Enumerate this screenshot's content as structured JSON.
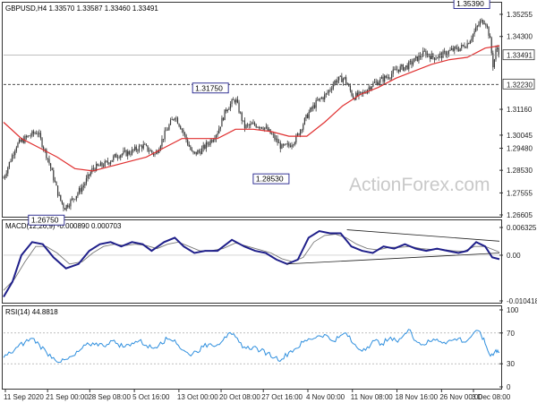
{
  "header": {
    "price_info": "GBPUSD,H4  1.33570 1.33587 1.33460 1.33491",
    "macd_info": "MACD(12,26,9) -0.000890 0.000703",
    "rsi_info": "RSI(14) 44.8818"
  },
  "watermark": "ActionForex.com",
  "colors": {
    "candle": "#3a3a3a",
    "ma": "#e03030",
    "macd": "#1f1f8a",
    "signal": "#777777",
    "rsi": "#2f8fde",
    "level_line": "#333333",
    "grid": "#e6e6e6"
  },
  "chart_data": [
    {
      "type": "candlestick",
      "title": "GBPUSD,H4",
      "ohlc_last": {
        "open": 1.3357,
        "high": 1.33587,
        "low": 1.3346,
        "close": 1.33491
      },
      "yticks": [
        "1.35255",
        "1.34300",
        "1.33491",
        "1.32230",
        "1.31160",
        "1.30045",
        "1.29480",
        "1.28530",
        "1.27555",
        "1.26605"
      ],
      "ylim": [
        1.26605,
        1.35255
      ],
      "path_points": [
        [
          0,
          1.282
        ],
        [
          14,
          1.296
        ],
        [
          28,
          1.3
        ],
        [
          38,
          1.302
        ],
        [
          50,
          1.29
        ],
        [
          62,
          1.274
        ],
        [
          68,
          1.269
        ],
        [
          78,
          1.273
        ],
        [
          90,
          1.279
        ],
        [
          100,
          1.286
        ],
        [
          114,
          1.288
        ],
        [
          128,
          1.292
        ],
        [
          142,
          1.293
        ],
        [
          156,
          1.296
        ],
        [
          170,
          1.292
        ],
        [
          182,
          1.302
        ],
        [
          192,
          1.309
        ],
        [
          200,
          1.303
        ],
        [
          212,
          1.292
        ],
        [
          222,
          1.294
        ],
        [
          232,
          1.298
        ],
        [
          240,
          1.302
        ],
        [
          250,
          1.312
        ],
        [
          260,
          1.316
        ],
        [
          270,
          1.304
        ],
        [
          282,
          1.305
        ],
        [
          292,
          1.304
        ],
        [
          302,
          1.3
        ],
        [
          312,
          1.295
        ],
        [
          320,
          1.296
        ],
        [
          328,
          1.299
        ],
        [
          334,
          1.304
        ],
        [
          342,
          1.31
        ],
        [
          352,
          1.315
        ],
        [
          362,
          1.318
        ],
        [
          372,
          1.324
        ],
        [
          382,
          1.325
        ],
        [
          392,
          1.317
        ],
        [
          402,
          1.318
        ],
        [
          412,
          1.322
        ],
        [
          422,
          1.324
        ],
        [
          432,
          1.326
        ],
        [
          442,
          1.329
        ],
        [
          452,
          1.33
        ],
        [
          462,
          1.333
        ],
        [
          472,
          1.336
        ],
        [
          482,
          1.334
        ],
        [
          492,
          1.335
        ],
        [
          502,
          1.337
        ],
        [
          512,
          1.338
        ],
        [
          520,
          1.34
        ],
        [
          528,
          1.345
        ],
        [
          534,
          1.349
        ],
        [
          540,
          1.35
        ],
        [
          545,
          1.343
        ],
        [
          549,
          1.33
        ],
        [
          553,
          1.339
        ],
        [
          556,
          1.3349
        ]
      ],
      "ma_points": [
        [
          0,
          1.306
        ],
        [
          20,
          1.299
        ],
        [
          40,
          1.295
        ],
        [
          60,
          1.291
        ],
        [
          80,
          1.286
        ],
        [
          100,
          1.285
        ],
        [
          120,
          1.287
        ],
        [
          140,
          1.289
        ],
        [
          160,
          1.291
        ],
        [
          180,
          1.295
        ],
        [
          200,
          1.299
        ],
        [
          220,
          1.299
        ],
        [
          240,
          1.299
        ],
        [
          260,
          1.303
        ],
        [
          280,
          1.303
        ],
        [
          300,
          1.302
        ],
        [
          320,
          1.3
        ],
        [
          340,
          1.3
        ],
        [
          360,
          1.306
        ],
        [
          380,
          1.313
        ],
        [
          400,
          1.318
        ],
        [
          420,
          1.321
        ],
        [
          440,
          1.325
        ],
        [
          460,
          1.328
        ],
        [
          480,
          1.331
        ],
        [
          500,
          1.333
        ],
        [
          520,
          1.334
        ],
        [
          540,
          1.338
        ],
        [
          556,
          1.339
        ]
      ],
      "annotations": [
        {
          "label": "1.35390",
          "x": 525,
          "value": 1.3539
        },
        {
          "label": "1.31750",
          "x": 232,
          "value": 1.3175
        },
        {
          "label": "1.28530",
          "x": 300,
          "value": 1.2853
        },
        {
          "label": "1.26750",
          "x": 48,
          "value": 1.2675
        }
      ],
      "current_price_label": "1.33491",
      "current_price": 1.33491,
      "support_level_label": "1.32230",
      "support_level": 1.3223
    },
    {
      "type": "line",
      "title": "MACD(12,26,9)",
      "values_header": {
        "macd": -0.00089,
        "signal": 0.000703
      },
      "yticks": [
        "0.006325",
        "0.00",
        "-0.010418"
      ],
      "ylim": [
        -0.010418,
        0.006325
      ],
      "macd_points": [
        [
          0,
          -0.0095
        ],
        [
          10,
          -0.006
        ],
        [
          20,
          0.0
        ],
        [
          32,
          0.003
        ],
        [
          44,
          0.0025
        ],
        [
          56,
          -0.0005
        ],
        [
          70,
          -0.003
        ],
        [
          84,
          -0.002
        ],
        [
          96,
          0.001
        ],
        [
          108,
          0.0025
        ],
        [
          120,
          0.003
        ],
        [
          132,
          0.002
        ],
        [
          144,
          0.003
        ],
        [
          156,
          0.0025
        ],
        [
          166,
          0.001
        ],
        [
          180,
          0.003
        ],
        [
          192,
          0.004
        ],
        [
          202,
          0.002
        ],
        [
          214,
          0.0005
        ],
        [
          226,
          0.001
        ],
        [
          240,
          0.001
        ],
        [
          256,
          0.0035
        ],
        [
          270,
          0.002
        ],
        [
          282,
          0.001
        ],
        [
          294,
          0.0005
        ],
        [
          306,
          -0.001
        ],
        [
          318,
          -0.002
        ],
        [
          330,
          -0.001
        ],
        [
          342,
          0.004
        ],
        [
          354,
          0.0055
        ],
        [
          366,
          0.005
        ],
        [
          378,
          0.005
        ],
        [
          390,
          0.002
        ],
        [
          402,
          0.001
        ],
        [
          414,
          0.0005
        ],
        [
          426,
          0.002
        ],
        [
          438,
          0.0015
        ],
        [
          450,
          0.0025
        ],
        [
          462,
          0.0015
        ],
        [
          474,
          0.001
        ],
        [
          486,
          0.0015
        ],
        [
          498,
          0.001
        ],
        [
          510,
          0.0005
        ],
        [
          520,
          0.001
        ],
        [
          530,
          0.003
        ],
        [
          540,
          0.002
        ],
        [
          548,
          -0.0005
        ],
        [
          556,
          -0.0009
        ]
      ],
      "signal_points": [
        [
          0,
          -0.008
        ],
        [
          12,
          -0.0055
        ],
        [
          24,
          -0.0015
        ],
        [
          36,
          0.002
        ],
        [
          48,
          0.002
        ],
        [
          60,
          0.0005
        ],
        [
          74,
          -0.002
        ],
        [
          88,
          -0.0015
        ],
        [
          100,
          0.0005
        ],
        [
          112,
          0.002
        ],
        [
          124,
          0.0025
        ],
        [
          136,
          0.0022
        ],
        [
          148,
          0.0025
        ],
        [
          160,
          0.0022
        ],
        [
          172,
          0.0015
        ],
        [
          184,
          0.0025
        ],
        [
          196,
          0.003
        ],
        [
          208,
          0.002
        ],
        [
          220,
          0.001
        ],
        [
          232,
          0.001
        ],
        [
          246,
          0.0015
        ],
        [
          260,
          0.0028
        ],
        [
          274,
          0.002
        ],
        [
          288,
          0.0012
        ],
        [
          300,
          0.0005
        ],
        [
          312,
          -0.0008
        ],
        [
          324,
          -0.0015
        ],
        [
          336,
          -0.0005
        ],
        [
          348,
          0.003
        ],
        [
          360,
          0.0045
        ],
        [
          372,
          0.0048
        ],
        [
          384,
          0.004
        ],
        [
          396,
          0.0025
        ],
        [
          408,
          0.0015
        ],
        [
          420,
          0.0012
        ],
        [
          432,
          0.0018
        ],
        [
          444,
          0.0018
        ],
        [
          456,
          0.002
        ],
        [
          468,
          0.0015
        ],
        [
          480,
          0.0013
        ],
        [
          492,
          0.0013
        ],
        [
          504,
          0.001
        ],
        [
          516,
          0.0009
        ],
        [
          528,
          0.002
        ],
        [
          540,
          0.002
        ],
        [
          556,
          0.0007
        ]
      ],
      "trendlines": [
        [
          [
            318,
            -0.002
          ],
          [
            556,
            0.0005
          ]
        ],
        [
          [
            385,
            0.0058
          ],
          [
            556,
            0.0032
          ]
        ]
      ]
    },
    {
      "type": "line",
      "title": "RSI(14)",
      "current_value": 44.8818,
      "yticks": [
        "100",
        "70",
        "30",
        "0"
      ],
      "ylim": [
        0,
        100
      ],
      "levels": [
        70,
        30
      ],
      "rsi_points": [
        [
          0,
          38
        ],
        [
          8,
          44
        ],
        [
          16,
          52
        ],
        [
          24,
          58
        ],
        [
          32,
          63
        ],
        [
          40,
          55
        ],
        [
          48,
          45
        ],
        [
          56,
          38
        ],
        [
          64,
          32
        ],
        [
          72,
          36
        ],
        [
          80,
          41
        ],
        [
          88,
          50
        ],
        [
          96,
          55
        ],
        [
          104,
          57
        ],
        [
          112,
          53
        ],
        [
          120,
          60
        ],
        [
          128,
          56
        ],
        [
          136,
          52
        ],
        [
          144,
          57
        ],
        [
          152,
          60
        ],
        [
          160,
          54
        ],
        [
          168,
          50
        ],
        [
          176,
          58
        ],
        [
          184,
          62
        ],
        [
          192,
          61
        ],
        [
          200,
          48
        ],
        [
          208,
          42
        ],
        [
          216,
          46
        ],
        [
          224,
          52
        ],
        [
          232,
          56
        ],
        [
          240,
          55
        ],
        [
          248,
          65
        ],
        [
          256,
          68
        ],
        [
          264,
          58
        ],
        [
          272,
          50
        ],
        [
          280,
          52
        ],
        [
          288,
          47
        ],
        [
          296,
          44
        ],
        [
          304,
          38
        ],
        [
          312,
          36
        ],
        [
          320,
          45
        ],
        [
          328,
          50
        ],
        [
          336,
          58
        ],
        [
          344,
          62
        ],
        [
          352,
          66
        ],
        [
          360,
          68
        ],
        [
          368,
          60
        ],
        [
          376,
          64
        ],
        [
          384,
          70
        ],
        [
          392,
          56
        ],
        [
          400,
          48
        ],
        [
          408,
          52
        ],
        [
          416,
          60
        ],
        [
          424,
          56
        ],
        [
          432,
          62
        ],
        [
          440,
          60
        ],
        [
          448,
          66
        ],
        [
          456,
          74
        ],
        [
          462,
          60
        ],
        [
          470,
          55
        ],
        [
          478,
          59
        ],
        [
          486,
          62
        ],
        [
          494,
          58
        ],
        [
          502,
          60
        ],
        [
          510,
          63
        ],
        [
          518,
          58
        ],
        [
          526,
          68
        ],
        [
          534,
          72
        ],
        [
          540,
          56
        ],
        [
          546,
          40
        ],
        [
          552,
          48
        ],
        [
          556,
          45
        ]
      ]
    }
  ],
  "time_axis": {
    "labels": [
      "11 Sep 2020",
      "21 Sep 00:00",
      "28 Sep 08:00",
      "5 Oct 16:00",
      "13 Oct 00:00",
      "20 Oct 08:00",
      "27 Oct 16:00",
      "4 Nov 00:00",
      "11 Nov 08:00",
      "18 Nov 16:00",
      "26 Nov 00:00",
      "3 Dec 08:00"
    ],
    "positions": [
      0,
      0.09,
      0.18,
      0.275,
      0.37,
      0.46,
      0.55,
      0.645,
      0.74,
      0.835,
      0.93,
      1.0
    ]
  }
}
